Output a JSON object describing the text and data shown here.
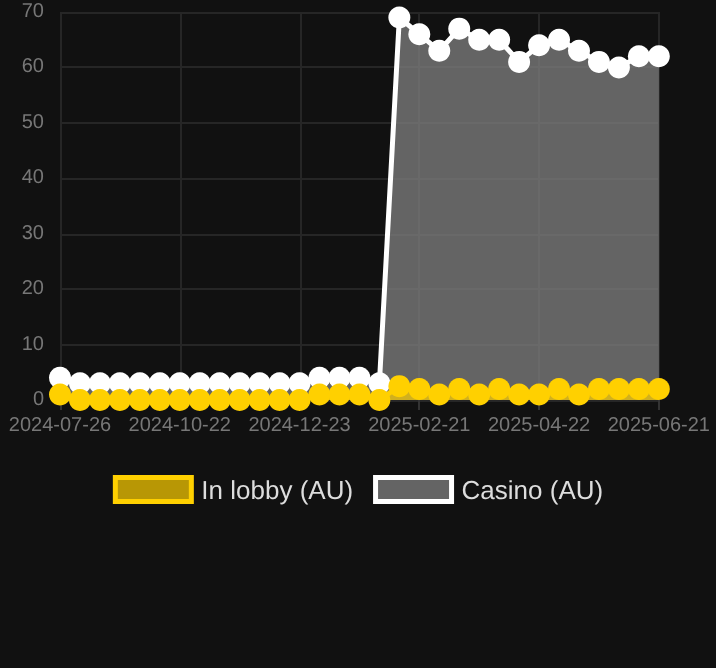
{
  "chart_data": {
    "type": "area",
    "categories": [
      "2024-07-26",
      null,
      null,
      null,
      null,
      null,
      "2024-10-22",
      null,
      null,
      null,
      null,
      null,
      "2024-12-23",
      null,
      null,
      null,
      null,
      null,
      "2025-02-21",
      null,
      null,
      null,
      null,
      null,
      "2025-04-22",
      null,
      null,
      null,
      null,
      null,
      "2025-06-21"
    ],
    "series": [
      {
        "name": "In lobby (AU)",
        "color": "#ffd000",
        "values": [
          1,
          0,
          0,
          0,
          0,
          0,
          0,
          0,
          0,
          0,
          0,
          0,
          0,
          1,
          1,
          1,
          0,
          2.5,
          2,
          1,
          2,
          1,
          2,
          1,
          1,
          2,
          1,
          2,
          2,
          2,
          2
        ]
      },
      {
        "name": "Casino (AU)",
        "color": "#ffffff",
        "values": [
          4,
          3,
          3,
          3,
          3,
          3,
          3,
          3,
          3,
          3,
          3,
          3,
          3,
          4,
          4,
          4,
          3,
          69,
          66,
          63,
          67,
          65,
          65,
          61,
          64,
          65,
          63,
          61,
          60,
          62,
          62
        ]
      }
    ],
    "ylim": [
      0,
      70
    ],
    "yticks": [
      0,
      10,
      20,
      30,
      40,
      50,
      60,
      70
    ],
    "grid": true,
    "legend": "bottom",
    "marker": "circle"
  }
}
